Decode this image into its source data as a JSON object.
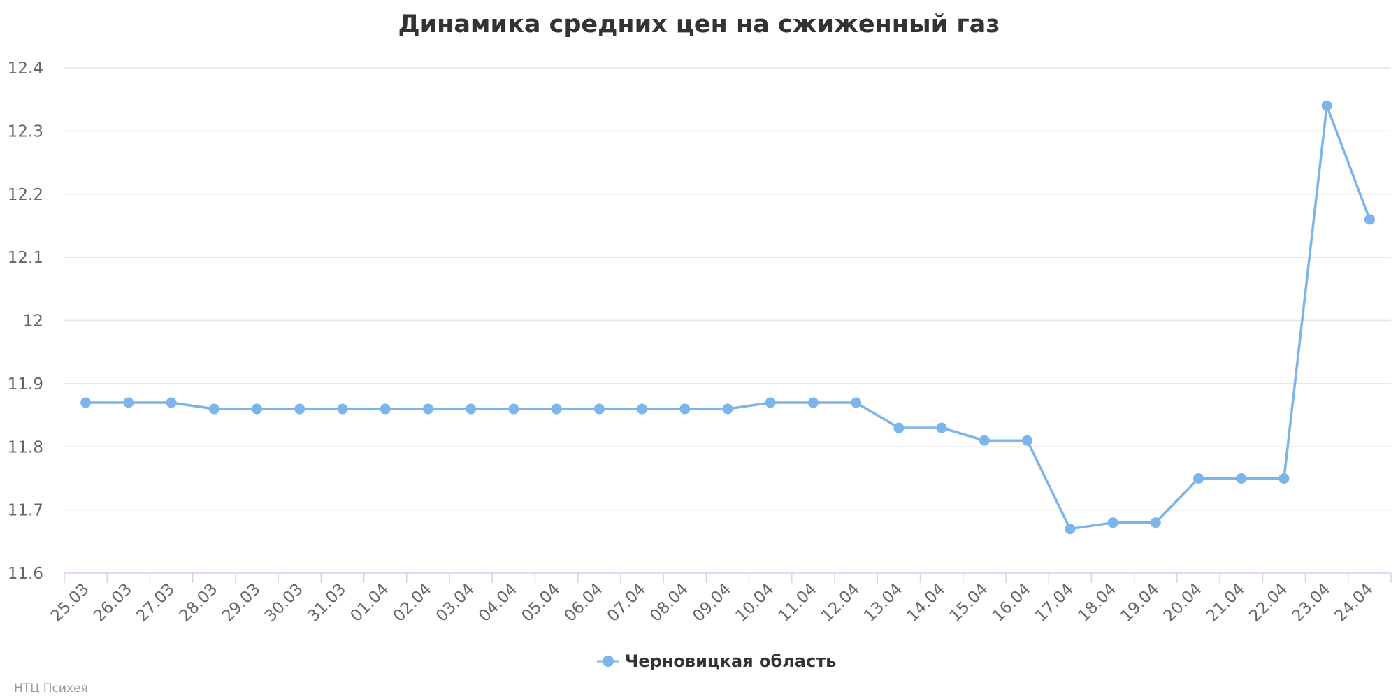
{
  "chart_data": {
    "type": "line",
    "title": "Динамика средних цен на сжиженный газ",
    "categories": [
      "25.03",
      "26.03",
      "27.03",
      "28.03",
      "29.03",
      "30.03",
      "31.03",
      "01.04",
      "02.04",
      "03.04",
      "04.04",
      "05.04",
      "06.04",
      "07.04",
      "08.04",
      "09.04",
      "10.04",
      "11.04",
      "12.04",
      "13.04",
      "14.04",
      "15.04",
      "16.04",
      "17.04",
      "18.04",
      "19.04",
      "20.04",
      "21.04",
      "22.04",
      "23.04",
      "24.04"
    ],
    "series": [
      {
        "name": "Черновицкая область",
        "values": [
          11.87,
          11.87,
          11.87,
          11.86,
          11.86,
          11.86,
          11.86,
          11.86,
          11.86,
          11.86,
          11.86,
          11.86,
          11.86,
          11.86,
          11.86,
          11.86,
          11.87,
          11.87,
          11.87,
          11.83,
          11.83,
          11.81,
          11.81,
          11.67,
          11.68,
          11.68,
          11.75,
          11.75,
          11.75,
          12.34,
          12.16
        ]
      }
    ],
    "ylim": [
      11.6,
      12.4
    ],
    "yticks": [
      "11.6",
      "11.7",
      "11.8",
      "11.9",
      "12",
      "12.1",
      "12.2",
      "12.3",
      "12.4"
    ],
    "xlabel": "",
    "ylabel": "",
    "grid": true,
    "legend": "bottom-center",
    "colors": {
      "series": "#7cb5ec"
    }
  },
  "credit": "НТЦ Психея"
}
